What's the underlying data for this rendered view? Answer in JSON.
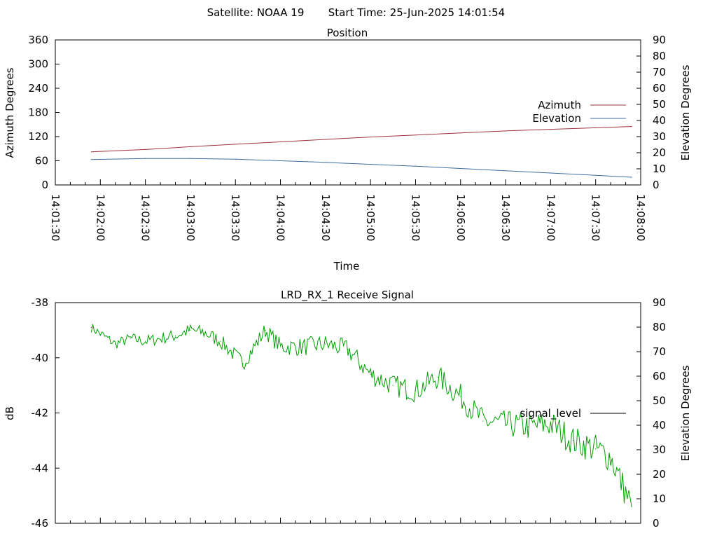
{
  "header": {
    "satellite": "Satellite: NOAA 19",
    "start_time": "Start Time: 25-Jun-2025 14:01:54"
  },
  "chart_data": [
    {
      "type": "line",
      "title": "Position",
      "xlabel": "Time",
      "ylabel": "Azimuth Degrees",
      "y2label": "Elevation Degrees",
      "ylim": [
        0,
        360
      ],
      "y2lim": [
        0,
        90
      ],
      "yticks": [
        "0",
        "60",
        "120",
        "180",
        "240",
        "300",
        "360"
      ],
      "y2ticks": [
        "0",
        "10",
        "20",
        "30",
        "40",
        "50",
        "60",
        "70",
        "80",
        "90"
      ],
      "xlim": [
        "14:01:30",
        "14:08:00"
      ],
      "xticks": [
        "14:01:30",
        "14:02:00",
        "14:02:30",
        "14:03:00",
        "14:03:30",
        "14:04:00",
        "14:04:30",
        "14:05:00",
        "14:05:30",
        "14:06:00",
        "14:06:30",
        "14:07:00",
        "14:07:30",
        "14:08:00"
      ],
      "legend_position": "right",
      "grid": false,
      "series": [
        {
          "name": "Azimuth",
          "axis": "left",
          "color": "#a0323c",
          "x": [
            "14:01:54",
            "14:02:30",
            "14:03:00",
            "14:03:30",
            "14:04:00",
            "14:04:30",
            "14:05:00",
            "14:05:30",
            "14:06:00",
            "14:06:30",
            "14:07:00",
            "14:07:30",
            "14:07:54"
          ],
          "values": [
            82,
            88,
            95,
            101,
            107,
            113,
            119,
            124,
            129,
            134,
            138,
            142,
            145
          ]
        },
        {
          "name": "Elevation",
          "axis": "right",
          "color": "#3c6ea0",
          "x": [
            "14:01:54",
            "14:02:30",
            "14:03:00",
            "14:03:30",
            "14:04:00",
            "14:04:30",
            "14:05:00",
            "14:05:30",
            "14:06:00",
            "14:06:30",
            "14:07:00",
            "14:07:30",
            "14:07:54"
          ],
          "values": [
            15.8,
            16.4,
            16.4,
            16.0,
            15.0,
            14.0,
            12.8,
            11.6,
            10.2,
            8.8,
            7.4,
            6.0,
            4.8
          ]
        }
      ]
    },
    {
      "type": "line",
      "title": "LRD_RX_1 Receive Signal",
      "ylabel": "dB",
      "y2label": "Elevation Degrees",
      "ylim": [
        -46,
        -38
      ],
      "y2lim": [
        0,
        90
      ],
      "yticks": [
        "-46",
        "-44",
        "-42",
        "-40",
        "-38"
      ],
      "y2ticks": [
        "0",
        "10",
        "20",
        "30",
        "40",
        "50",
        "60",
        "70",
        "80",
        "90"
      ],
      "xlim": [
        "14:01:30",
        "14:08:00"
      ],
      "legend_position": "right",
      "grid": false,
      "series": [
        {
          "name": "signal_level",
          "legend_color": "#000000",
          "color": "#00a000",
          "x": [
            "14:01:54",
            "14:02:10",
            "14:02:20",
            "14:02:30",
            "14:02:50",
            "14:03:00",
            "14:03:10",
            "14:03:20",
            "14:03:35",
            "14:03:50",
            "14:04:00",
            "14:04:15",
            "14:04:30",
            "14:04:45",
            "14:05:00",
            "14:05:15",
            "14:05:30",
            "14:05:45",
            "14:06:00",
            "14:06:15",
            "14:06:30",
            "14:06:45",
            "14:07:00",
            "14:07:15",
            "14:07:30",
            "14:07:40",
            "14:07:54"
          ],
          "values": [
            -38.9,
            -39.5,
            -39.3,
            -39.4,
            -39.2,
            -39.0,
            -39.1,
            -39.4,
            -40.2,
            -39.0,
            -39.6,
            -39.6,
            -39.5,
            -39.7,
            -40.6,
            -41.0,
            -41.2,
            -40.7,
            -41.4,
            -42.3,
            -42.4,
            -42.5,
            -42.4,
            -43.0,
            -43.3,
            -43.6,
            -45.4
          ]
        }
      ]
    }
  ]
}
